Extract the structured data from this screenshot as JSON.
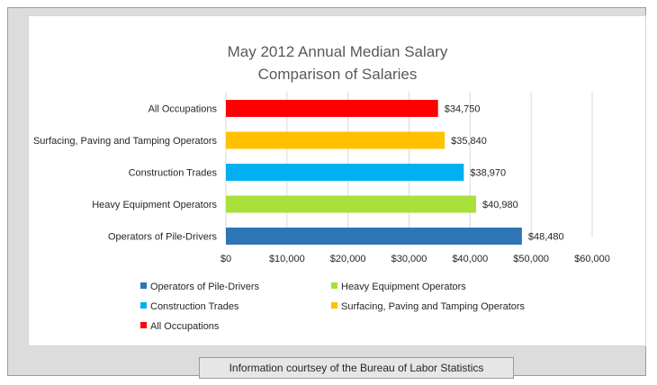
{
  "chart_data": {
    "type": "bar",
    "orientation": "horizontal",
    "title": "May 2012 Annual Median Salary",
    "subtitle": "Comparison of Salaries",
    "categories": [
      "All Occupations",
      "Surfacing, Paving and Tamping Operators",
      "Construction Trades",
      "Heavy Equipment Operators",
      "Operators of Pile-Drivers"
    ],
    "values": [
      34750,
      35840,
      38970,
      40980,
      48480
    ],
    "data_labels": [
      "$34,750",
      "$35,840",
      "$38,970",
      "$40,980",
      "$48,480"
    ],
    "colors": [
      "#ff0000",
      "#ffc000",
      "#00b0f0",
      "#a9e03a",
      "#2e75b6"
    ],
    "xlim": [
      0,
      60000
    ],
    "x_ticks": [
      0,
      10000,
      20000,
      30000,
      40000,
      50000,
      60000
    ],
    "x_tick_labels": [
      "$0",
      "$10,000",
      "$20,000",
      "$30,000",
      "$40,000",
      "$50,000",
      "$60,000"
    ],
    "grid": true,
    "legend_position": "bottom",
    "legend": [
      {
        "label": "Operators of Pile-Drivers",
        "color": "#2e75b6"
      },
      {
        "label": "Heavy Equipment Operators",
        "color": "#a9e03a"
      },
      {
        "label": "Construction Trades",
        "color": "#00b0f0"
      },
      {
        "label": "Surfacing, Paving and Tamping Operators",
        "color": "#ffc000"
      },
      {
        "label": "All Occupations",
        "color": "#ff0000"
      }
    ]
  },
  "footer": {
    "text": "Information courtsey of the Bureau of Labor Statistics"
  }
}
